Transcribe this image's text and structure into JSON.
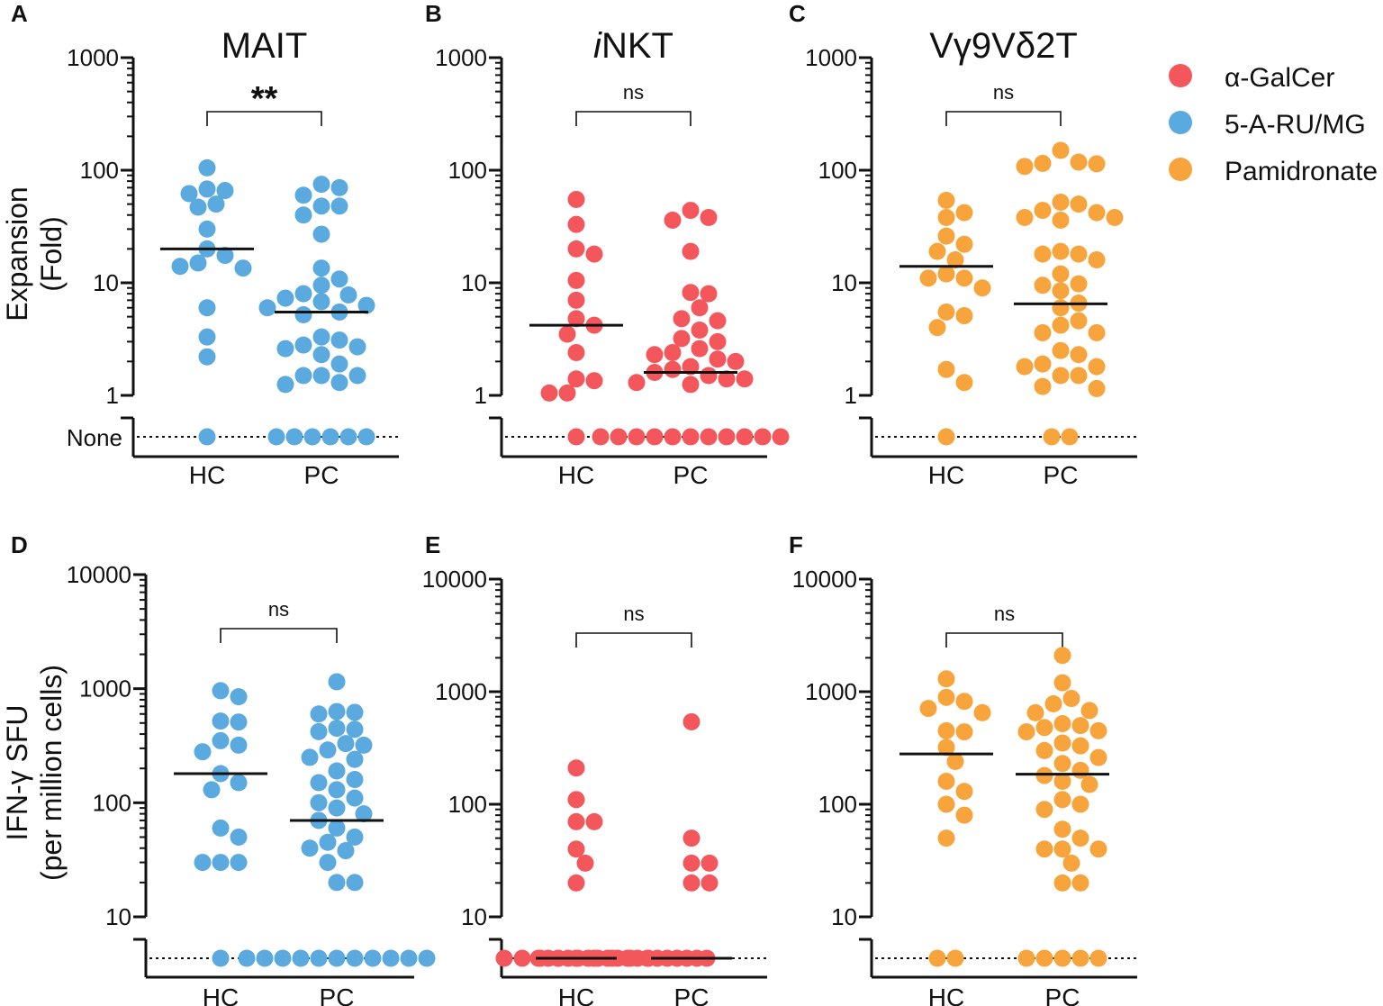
{
  "colors": {
    "a_galcer": "#f4575b",
    "five_a_ru": "#5aa9df",
    "pamidronate": "#f7a43c",
    "axis": "#111111"
  },
  "legend": [
    {
      "label": "α-GalCer",
      "color": "#f4575b"
    },
    {
      "label": "5-A-RU/MG",
      "color": "#5aa9df"
    },
    {
      "label": "Pamidronate",
      "color": "#f7a43c"
    }
  ],
  "y_labels": {
    "top": [
      "Expansion",
      "(Fold)"
    ],
    "bottom": [
      "IFN-γ SFU",
      "(per million cells)"
    ]
  },
  "none_label": "None",
  "chart_data": [
    {
      "letter": "A",
      "title": "MAIT",
      "title_italic_prefix": "",
      "title_rest": "MAIT",
      "type": "scatter",
      "scale": "log",
      "ylim": [
        1,
        1000
      ],
      "ticks": [
        1,
        10,
        100,
        1000
      ],
      "tick_labels": [
        "1",
        "10",
        "100",
        "1000"
      ],
      "categories": [
        "HC",
        "PC"
      ],
      "show_none_label": true,
      "color": "#5aa9df",
      "significance": "**",
      "median": [
        20,
        5.5
      ],
      "series": [
        {
          "name": "HC",
          "values": [
            105,
            62,
            68,
            66,
            47,
            50,
            30,
            20,
            17.5,
            14,
            15,
            13.5,
            6,
            3.3,
            2.2
          ],
          "none_count": 1
        },
        {
          "name": "PC",
          "values": [
            75,
            70,
            60,
            48,
            48,
            40,
            27,
            13.5,
            10.8,
            9.5,
            8,
            7.8,
            7.3,
            6.8,
            6.3,
            6.0,
            5.5,
            5.2,
            3.3,
            3.1,
            2.8,
            2.7,
            2.6,
            2.3,
            1.9,
            1.5,
            1.5,
            1.5,
            1.3,
            1.25
          ],
          "none_count": 6
        }
      ]
    },
    {
      "letter": "B",
      "title": "iNKT",
      "title_italic_prefix": "i",
      "title_rest": "NKT",
      "type": "scatter",
      "scale": "log",
      "ylim": [
        1,
        1000
      ],
      "ticks": [
        1,
        10,
        100,
        1000
      ],
      "tick_labels": [
        "1",
        "10",
        "100",
        "1000"
      ],
      "categories": [
        "HC",
        "PC"
      ],
      "show_none_label": false,
      "color": "#f4575b",
      "significance": "ns",
      "median": [
        4.2,
        1.6
      ],
      "series": [
        {
          "name": "HC",
          "values": [
            55,
            33,
            20,
            18,
            10.5,
            7,
            4.8,
            4.2,
            3.5,
            2.4,
            1.4,
            1.35,
            1.05,
            1.05
          ],
          "none_count": 1
        },
        {
          "name": "PC",
          "values": [
            44,
            38,
            36,
            19,
            8.2,
            8.0,
            6.0,
            4.8,
            4.6,
            3.8,
            3.2,
            3.0,
            2.6,
            2.4,
            2.3,
            2.1,
            2.0,
            1.8,
            1.7,
            1.6,
            1.5,
            1.4,
            1.4,
            1.3,
            1.25
          ],
          "none_count": 11
        }
      ]
    },
    {
      "letter": "C",
      "title": "Vγ9Vδ2T",
      "title_italic_prefix": "",
      "title_rest": "Vγ9Vδ2T",
      "type": "scatter",
      "scale": "log",
      "ylim": [
        1,
        1000
      ],
      "ticks": [
        1,
        10,
        100,
        1000
      ],
      "tick_labels": [
        "1",
        "10",
        "100",
        "1000"
      ],
      "categories": [
        "HC",
        "PC"
      ],
      "show_none_label": false,
      "color": "#f7a43c",
      "significance": "ns",
      "median": [
        14,
        6.5
      ],
      "series": [
        {
          "name": "HC",
          "values": [
            54,
            42,
            38,
            26,
            22,
            19,
            16,
            12,
            11,
            11,
            9,
            5.5,
            5.1,
            4,
            1.7,
            1.3
          ],
          "none_count": 1
        },
        {
          "name": "PC",
          "values": [
            150,
            118,
            115,
            114,
            108,
            52,
            50,
            44,
            42,
            38,
            38,
            36,
            19,
            18,
            18,
            16,
            12,
            9.8,
            9.5,
            8.5,
            6.6,
            6.0,
            4.6,
            4.2,
            3.6,
            3.6,
            2.5,
            2.3,
            1.9,
            1.8,
            1.8,
            1.5,
            1.5,
            1.2,
            1.15
          ],
          "none_count": 2
        }
      ]
    },
    {
      "letter": "D",
      "title": "",
      "title_italic_prefix": "",
      "title_rest": "",
      "type": "scatter",
      "scale": "log",
      "ylim": [
        10,
        10000
      ],
      "ticks": [
        10,
        100,
        1000,
        10000
      ],
      "tick_labels": [
        "10",
        "100",
        "1000",
        "10000"
      ],
      "categories": [
        "HC",
        "PC"
      ],
      "show_none_label": false,
      "color": "#5aa9df",
      "significance": "ns",
      "median": [
        180,
        70
      ],
      "series": [
        {
          "name": "HC",
          "values": [
            960,
            850,
            520,
            510,
            350,
            320,
            280,
            180,
            150,
            130,
            60,
            50,
            30,
            30,
            30
          ],
          "none_count": 1
        },
        {
          "name": "PC",
          "values": [
            1150,
            630,
            620,
            600,
            450,
            440,
            420,
            330,
            320,
            290,
            250,
            240,
            190,
            160,
            150,
            130,
            110,
            100,
            90,
            80,
            70,
            60,
            50,
            45,
            40,
            38,
            30,
            20,
            20
          ],
          "none_count": 11
        }
      ]
    },
    {
      "letter": "E",
      "title": "",
      "title_italic_prefix": "",
      "title_rest": "",
      "type": "scatter",
      "scale": "log",
      "ylim": [
        10,
        10000
      ],
      "ticks": [
        10,
        100,
        1000,
        10000
      ],
      "tick_labels": [
        "10",
        "100",
        "1000",
        "10000"
      ],
      "categories": [
        "HC",
        "PC"
      ],
      "show_none_label": false,
      "color": "#f4575b",
      "significance": "ns",
      "median": null,
      "series": [
        {
          "name": "HC",
          "values": [
            210,
            110,
            70,
            70,
            40,
            30,
            20
          ],
          "none_count": 9
        },
        {
          "name": "PC",
          "values": [
            540,
            50,
            30,
            30,
            20,
            20
          ],
          "none_count": 18
        }
      ]
    },
    {
      "letter": "F",
      "title": "",
      "title_italic_prefix": "",
      "title_rest": "",
      "type": "scatter",
      "scale": "log",
      "ylim": [
        10,
        10000
      ],
      "ticks": [
        10,
        100,
        1000,
        10000
      ],
      "tick_labels": [
        "10",
        "100",
        "1000",
        "10000"
      ],
      "categories": [
        "HC",
        "PC"
      ],
      "show_none_label": false,
      "color": "#f7a43c",
      "significance": "ns",
      "median": [
        280,
        185
      ],
      "series": [
        {
          "name": "HC",
          "values": [
            1300,
            890,
            820,
            710,
            650,
            450,
            440,
            320,
            240,
            160,
            130,
            100,
            80,
            50
          ],
          "none_count": 2
        },
        {
          "name": "PC",
          "values": [
            2100,
            1200,
            870,
            780,
            680,
            650,
            520,
            500,
            480,
            450,
            440,
            350,
            330,
            300,
            260,
            230,
            200,
            180,
            160,
            150,
            110,
            100,
            90,
            60,
            50,
            40,
            40,
            40,
            30,
            20,
            20
          ],
          "none_count": 5
        }
      ]
    }
  ]
}
